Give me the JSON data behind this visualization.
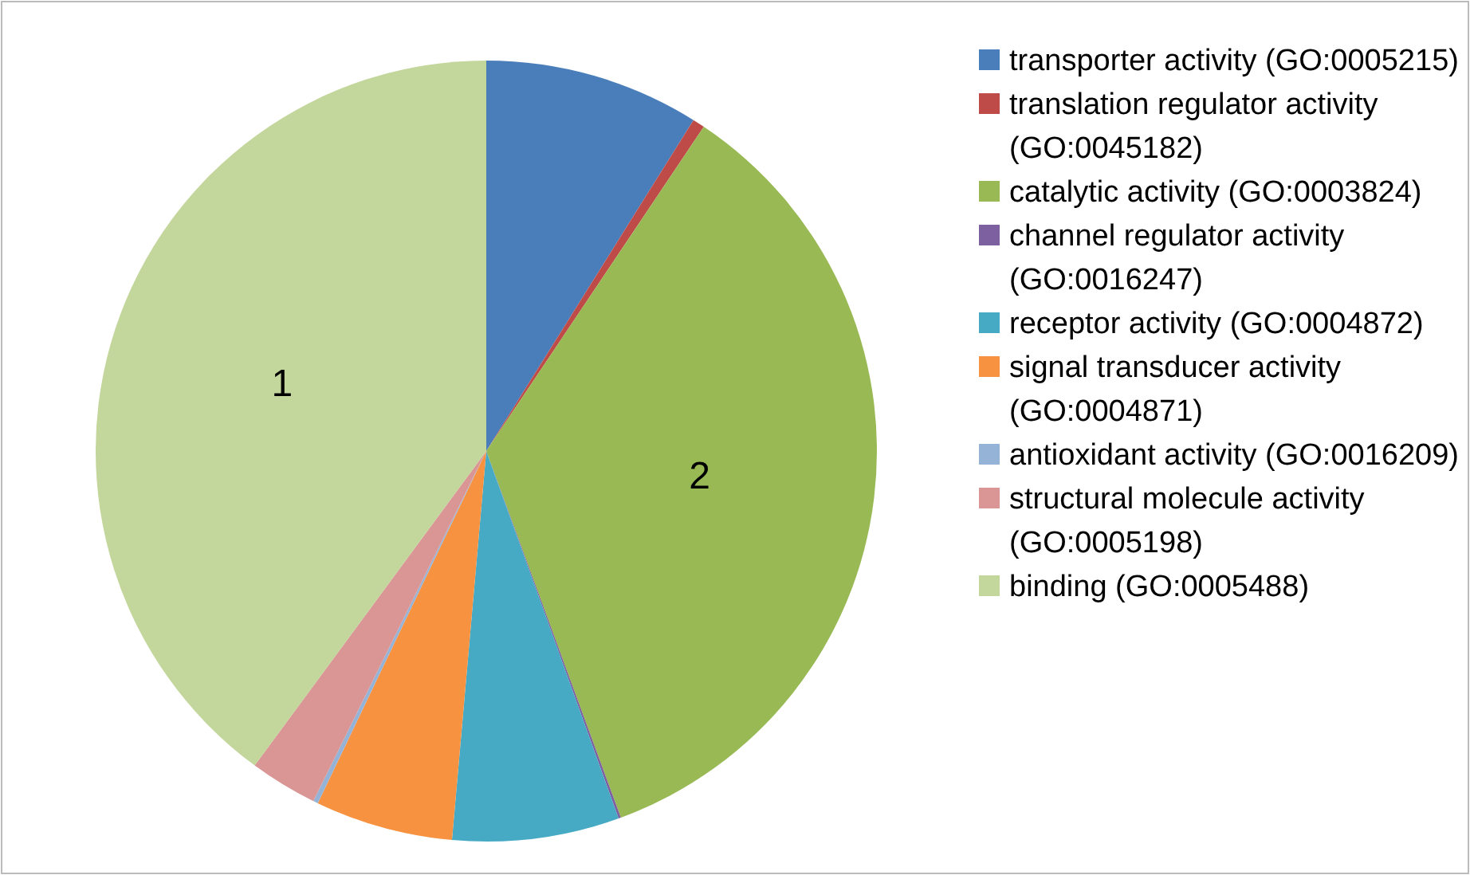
{
  "chart_data": {
    "type": "pie",
    "categories": [
      "transporter activity (GO:0005215)",
      "translation regulator activity (GO:0045182)",
      "catalytic activity (GO:0003824)",
      "channel regulator activity (GO:0016247)",
      "receptor activity (GO:0004872)",
      "signal transducer activity (GO:0004871)",
      "antioxidant activity (GO:0016209)",
      "structural molecule activity (GO:0005198)",
      "binding (GO:0005488)"
    ],
    "values": [
      8.9,
      0.5,
      35,
      0.1,
      6.9,
      5.7,
      0.2,
      2.8,
      39.9
    ],
    "colors": [
      "#4a7ebb",
      "#be4b48",
      "#98b954",
      "#7d60a0",
      "#46aac5",
      "#f69240",
      "#95b3d7",
      "#d99694",
      "#c3d69b"
    ],
    "annotations": [
      {
        "text": "1",
        "x": "binding (GO:0005488)"
      },
      {
        "text": "2",
        "x": "catalytic activity (GO:0003824)"
      }
    ],
    "legend": "right"
  }
}
